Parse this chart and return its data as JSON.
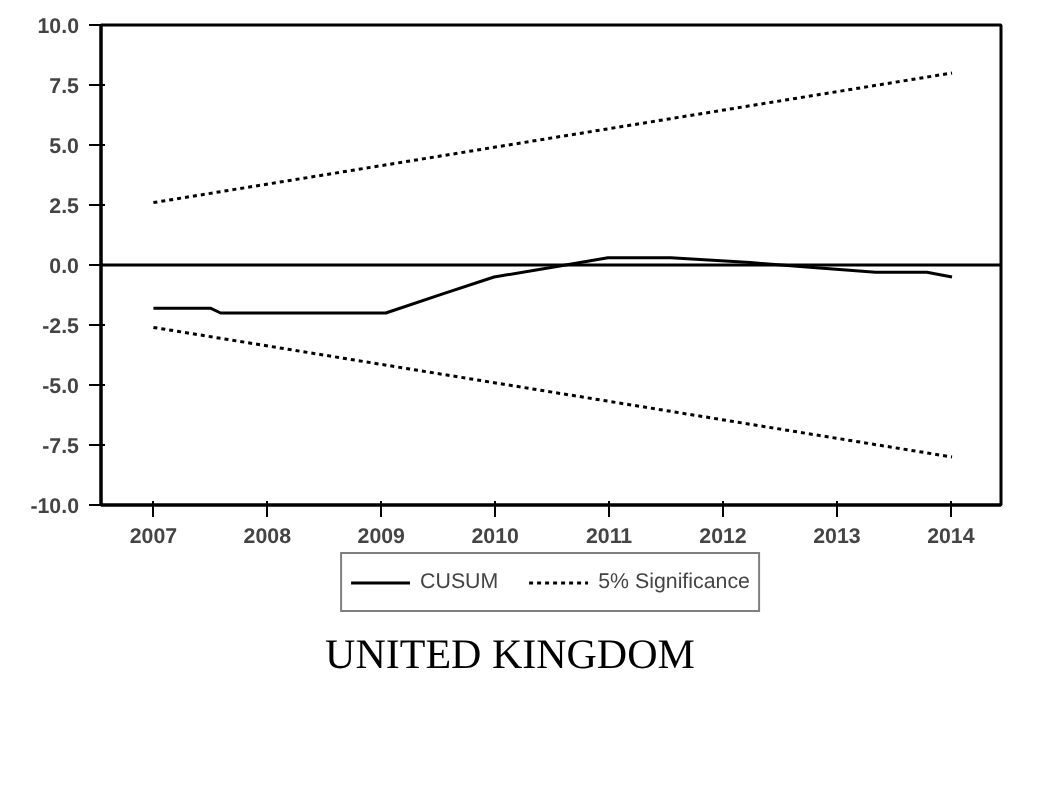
{
  "chart_data": {
    "type": "line",
    "title": "UNITED KINGDOM",
    "xlim": [
      2007.0,
      2014.9
    ],
    "xticks": [
      {
        "value": 2007.46,
        "label": "2007"
      },
      {
        "value": 2008.46,
        "label": "2008"
      },
      {
        "value": 2009.46,
        "label": "2009"
      },
      {
        "value": 2010.46,
        "label": "2010"
      },
      {
        "value": 2011.46,
        "label": "2011"
      },
      {
        "value": 2012.46,
        "label": "2012"
      },
      {
        "value": 2013.46,
        "label": "2013"
      },
      {
        "value": 2014.46,
        "label": "2014"
      }
    ],
    "ylim": [
      -10,
      10
    ],
    "yticks": [
      {
        "value": -10,
        "label": "-10.0"
      },
      {
        "value": -7.5,
        "label": "-7.5"
      },
      {
        "value": -5,
        "label": "-5.0"
      },
      {
        "value": -2.5,
        "label": "-2.5"
      },
      {
        "value": 0,
        "label": "0.0"
      },
      {
        "value": 2.5,
        "label": "2.5"
      },
      {
        "value": 5,
        "label": "5.0"
      },
      {
        "value": 7.5,
        "label": "7.5"
      },
      {
        "value": 10,
        "label": "10.0"
      }
    ],
    "series": [
      {
        "name": "CUSUM",
        "color": "#000000",
        "line_style": "solid",
        "x": [
          2007.46,
          2007.96,
          2008.05,
          2009.5,
          2010.0,
          2010.45,
          2010.95,
          2011.45,
          2012.0,
          2012.7,
          2013.25,
          2013.8,
          2014.25,
          2014.47
        ],
        "values": [
          -1.8,
          -1.8,
          -2.0,
          -2.0,
          -1.2,
          -0.5,
          -0.1,
          0.3,
          0.3,
          0.1,
          -0.1,
          -0.3,
          -0.3,
          -0.5
        ]
      },
      {
        "name": "5% Significance",
        "color": "#000000",
        "line_style": "dotted",
        "x": [
          2007.46,
          2014.47
        ],
        "values": [
          2.6,
          8.0
        ]
      },
      {
        "color": "#000000",
        "line_style": "dotted",
        "x": [
          2007.46,
          2014.47
        ],
        "values": [
          -2.6,
          -8.0
        ]
      }
    ],
    "ref_lines": [
      {
        "axis": "y",
        "value": 0,
        "color": "#000000"
      }
    ],
    "grid": false,
    "legend": "bottom"
  }
}
